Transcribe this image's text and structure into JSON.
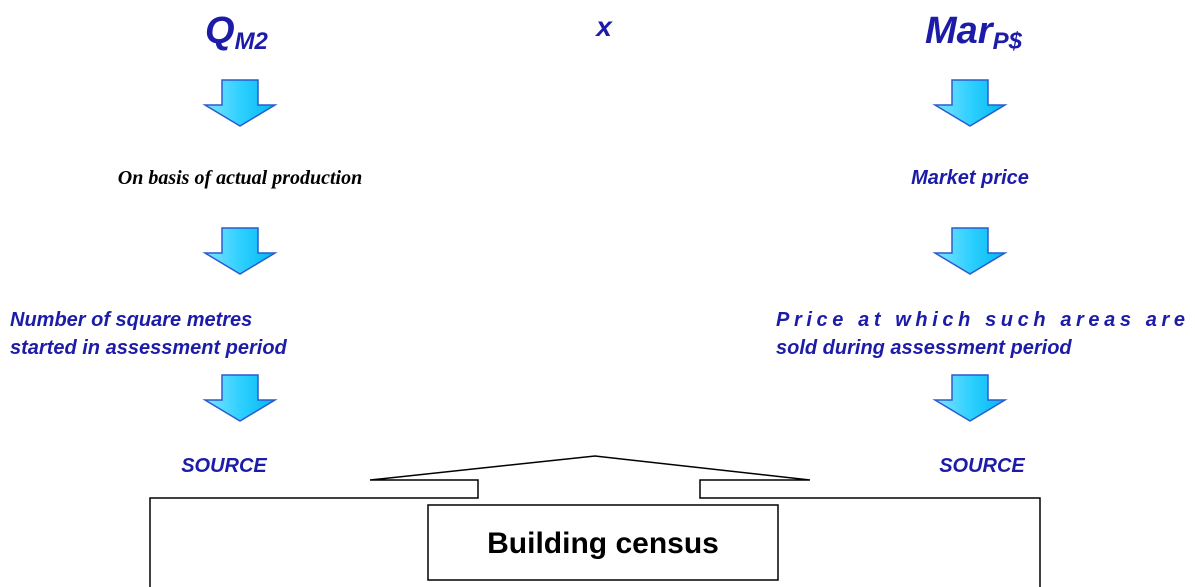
{
  "left": {
    "symbol": "Q",
    "subscript": "M2",
    "basis": "On basis of actual production",
    "description": [
      "Number of square metres",
      "started in assessment period"
    ],
    "source": "SOURCE"
  },
  "operator": "x",
  "right": {
    "symbol": "Mar",
    "subscript": "P$",
    "basis": "Market price",
    "description": [
      "Price at which such areas are",
      "sold during assessment period"
    ],
    "source": "SOURCE"
  },
  "box": {
    "label": "Building census"
  }
}
